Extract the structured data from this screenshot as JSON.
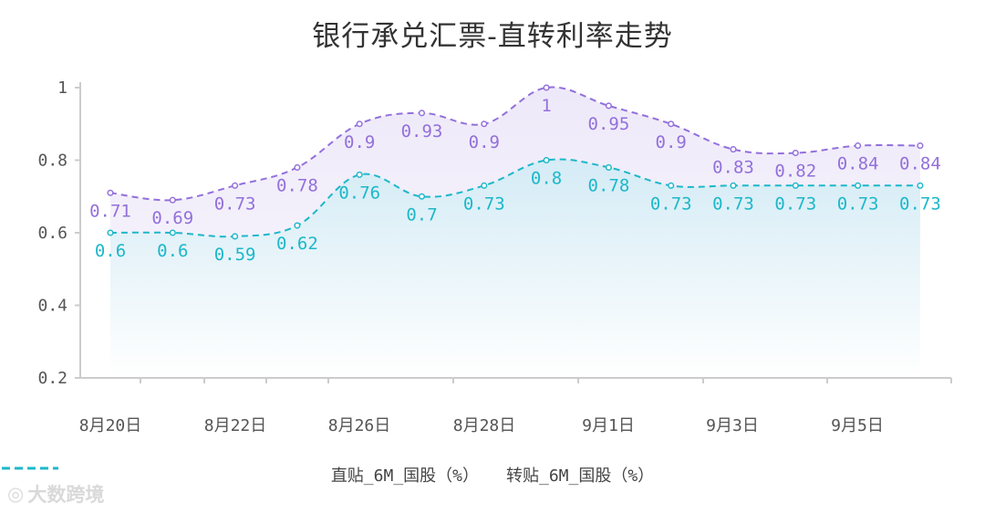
{
  "title": "银行承兑汇票-直转利率走势",
  "watermark": "大数跨境",
  "chart_data": {
    "type": "line",
    "title": "银行承兑汇票-直转利率走势",
    "x_tick_labels": [
      "8月20日",
      "8月22日",
      "8月26日",
      "8月28日",
      "9月1日",
      "9月3日",
      "9月5日"
    ],
    "y_ticks": [
      "0.2",
      "0.4",
      "0.6",
      "0.8",
      "1"
    ],
    "ylim": [
      0.2,
      1
    ],
    "grid": false,
    "legend_position": "bottom",
    "series": [
      {
        "name": "直贴_6M_国股（%）",
        "color": "#9370db",
        "values": [
          0.71,
          0.69,
          0.73,
          0.78,
          0.9,
          0.93,
          0.9,
          1,
          0.95,
          0.9,
          0.83,
          0.82,
          0.84,
          0.84
        ],
        "labels": [
          "0.71",
          "0.69",
          "0.73",
          "0.78",
          "0.9",
          "0.93",
          "0.9",
          "1",
          "0.95",
          "0.9",
          "0.83",
          "0.82",
          "0.84",
          "0.84"
        ]
      },
      {
        "name": "转贴_6M_国股（%）",
        "color": "#1cb8c9",
        "values": [
          0.6,
          0.6,
          0.59,
          0.62,
          0.76,
          0.7,
          0.73,
          0.8,
          0.78,
          0.73,
          0.73,
          0.73,
          0.73,
          0.73
        ],
        "labels": [
          "0.6",
          "0.6",
          "0.59",
          "0.62",
          "0.76",
          "0.7",
          "0.73",
          "0.8",
          "0.78",
          "0.73",
          "0.73",
          "0.73",
          "0.73",
          "0.73"
        ]
      }
    ]
  }
}
